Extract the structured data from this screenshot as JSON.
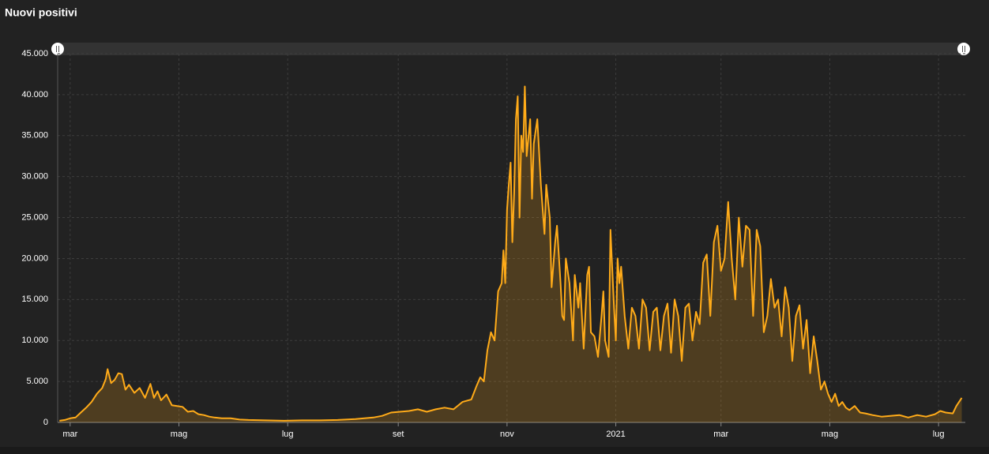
{
  "chart_data": {
    "type": "line",
    "title": "Nuovi positivi",
    "x": [
      -6,
      -3,
      0,
      3,
      6,
      9,
      12,
      15,
      18,
      20,
      21,
      23,
      25,
      27,
      29,
      31,
      33,
      36,
      39,
      42,
      45,
      47,
      49,
      51,
      54,
      57,
      60,
      63,
      66,
      69,
      72,
      75,
      78,
      81,
      85,
      90,
      95,
      100,
      110,
      120,
      130,
      140,
      150,
      160,
      165,
      170,
      175,
      180,
      185,
      190,
      195,
      200,
      205,
      210,
      215,
      220,
      225,
      228,
      230,
      232,
      234,
      236,
      238,
      240,
      242,
      243,
      244,
      245,
      246,
      247,
      248,
      249,
      250,
      251,
      252,
      253,
      254,
      255,
      256,
      258,
      259,
      260,
      262,
      264,
      266,
      267,
      269,
      270,
      272,
      273,
      275,
      276,
      277,
      278,
      280,
      282,
      283,
      285,
      286,
      288,
      290,
      291,
      292,
      294,
      296,
      298,
      299,
      300,
      302,
      303,
      305,
      306,
      307,
      308,
      309,
      311,
      313,
      315,
      317,
      319,
      321,
      323,
      325,
      327,
      329,
      331,
      333,
      335,
      337,
      339,
      341,
      343,
      345,
      347,
      349,
      351,
      353,
      355,
      357,
      359,
      361,
      363,
      365,
      367,
      369,
      371,
      373,
      375,
      377,
      379,
      381,
      383,
      385,
      387,
      389,
      391,
      393,
      395,
      397,
      399,
      401,
      403,
      405,
      407,
      409,
      411,
      413,
      415,
      417,
      419,
      421,
      423,
      425,
      427,
      429,
      431,
      433,
      435,
      437,
      440,
      443,
      446,
      450,
      455,
      460,
      465,
      470,
      475,
      480,
      485,
      488,
      491,
      495,
      497,
      500
    ],
    "series": [
      {
        "name": "Nuovi positivi",
        "color": "#ffab19",
        "values": [
          200,
          300,
          500,
          600,
          1200,
          1800,
          2500,
          3500,
          4200,
          5300,
          6500,
          4800,
          5200,
          6000,
          5900,
          4000,
          4600,
          3600,
          4200,
          3000,
          4700,
          3000,
          3800,
          2700,
          3400,
          2100,
          2000,
          1900,
          1300,
          1400,
          1000,
          900,
          700,
          600,
          500,
          500,
          350,
          300,
          250,
          200,
          250,
          250,
          300,
          400,
          500,
          600,
          800,
          1200,
          1300,
          1400,
          1600,
          1300,
          1600,
          1800,
          1600,
          2500,
          2800,
          4500,
          5500,
          5000,
          8800,
          11000,
          10000,
          16000,
          17000,
          21000,
          17000,
          26000,
          29000,
          31700,
          22000,
          28000,
          37000,
          39800,
          25000,
          35000,
          33000,
          41000,
          32500,
          37000,
          27300,
          34000,
          37000,
          29000,
          23000,
          29000,
          25000,
          16500,
          22000,
          24000,
          17000,
          13000,
          12500,
          20000,
          17000,
          10000,
          18000,
          14000,
          17000,
          9000,
          18000,
          19000,
          11000,
          10500,
          8000,
          13000,
          16000,
          10000,
          8000,
          23500,
          14000,
          10000,
          20000,
          17000,
          19000,
          13000,
          9000,
          14000,
          13000,
          9000,
          15000,
          14000,
          8800,
          13500,
          14000,
          8800,
          13000,
          14500,
          8500,
          15000,
          13000,
          7500,
          14000,
          14500,
          10000,
          13500,
          12000,
          19500,
          20500,
          13000,
          22000,
          24000,
          18500,
          20000,
          26900,
          20000,
          15000,
          25000,
          19000,
          24000,
          23500,
          13000,
          23500,
          21500,
          11000,
          13000,
          17500,
          14000,
          15000,
          10500,
          16500,
          14000,
          7500,
          13000,
          14300,
          9000,
          12500,
          6000,
          10500,
          7500,
          4000,
          5000,
          3500,
          2500,
          3500,
          2000,
          2500,
          1800,
          1500,
          2000,
          1200,
          1100,
          900,
          700,
          800,
          900,
          600,
          900,
          700,
          1000,
          1400,
          1200,
          1100,
          2000,
          3000
        ]
      }
    ],
    "xlim": [
      -7,
      502
    ],
    "xticks": [
      {
        "value": 0,
        "label": "mar"
      },
      {
        "value": 61,
        "label": "mag"
      },
      {
        "value": 122,
        "label": "lug"
      },
      {
        "value": 184,
        "label": "set"
      },
      {
        "value": 245,
        "label": "nov"
      },
      {
        "value": 306,
        "label": "2021"
      },
      {
        "value": 365,
        "label": "mar"
      },
      {
        "value": 426,
        "label": "mag"
      },
      {
        "value": 487,
        "label": "lug"
      }
    ],
    "ylim": [
      0,
      45000
    ],
    "yticks": [
      0,
      {
        "value": 5000,
        "label": "5.000"
      },
      {
        "value": 10000,
        "label": "10.000"
      },
      {
        "value": 15000,
        "label": "15.000"
      },
      {
        "value": 20000,
        "label": "20.000"
      },
      {
        "value": 25000,
        "label": "25.000"
      },
      {
        "value": 30000,
        "label": "30.000"
      },
      {
        "value": 35000,
        "label": "35.000"
      },
      {
        "value": 40000,
        "label": "40.000"
      },
      {
        "value": 45000,
        "label": "45.000"
      }
    ],
    "grid": true
  }
}
